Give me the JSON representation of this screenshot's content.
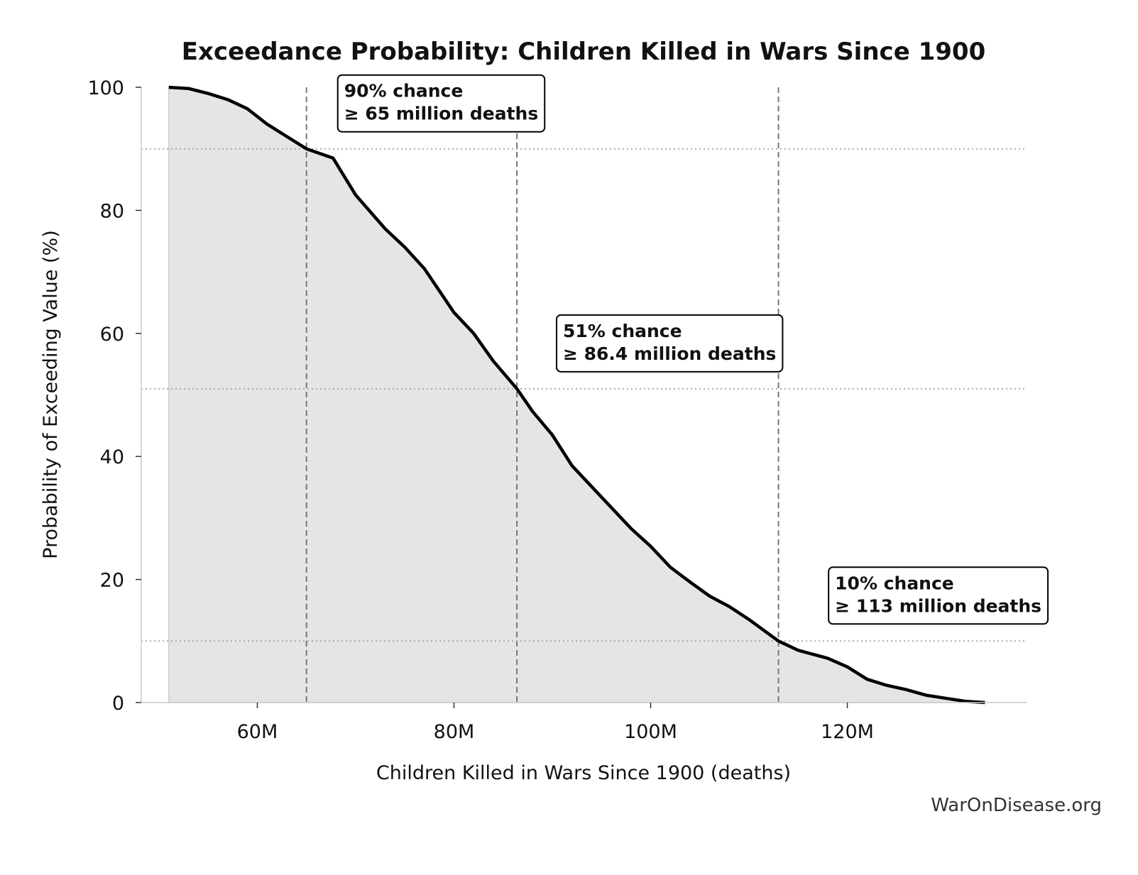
{
  "chart_data": {
    "type": "line",
    "fill": true,
    "title": "Exceedance Probability: Children Killed in Wars Since 1900",
    "xlabel": "Children Killed in Wars Since 1900 (deaths)",
    "ylabel": "Probability of Exceeding Value (%)",
    "source": "WarOnDisease.org",
    "color": "#000000",
    "fill_color": "#e5e5e5",
    "x": [
      51000000,
      53000000,
      55000000,
      57000000,
      59000000,
      61000000,
      63000000,
      65000000,
      67700000,
      70000000,
      73000000,
      75000000,
      77000000,
      80000000,
      82000000,
      84000000,
      86400000,
      88000000,
      90000000,
      92000000,
      95000000,
      98000000,
      100000000,
      102000000,
      104000000,
      106000000,
      108000000,
      110000000,
      113000000,
      115000000,
      118000000,
      120000000,
      122000000,
      124000000,
      126000000,
      128000000,
      130000000,
      132000000,
      134000000
    ],
    "values": [
      100,
      99.8,
      99,
      98,
      96.5,
      94,
      92,
      90,
      88.5,
      82.5,
      77,
      74,
      70.5,
      63.4,
      60,
      55.5,
      51,
      47.3,
      43.5,
      38.5,
      33.4,
      28.3,
      25.4,
      22,
      19.6,
      17.3,
      15.6,
      13.5,
      10,
      8.5,
      7.2,
      5.8,
      3.8,
      2.8,
      2.1,
      1.2,
      0.7,
      0.2,
      0
    ],
    "xlim": [
      48200000,
      138300000
    ],
    "ylim": [
      0,
      100
    ],
    "xticks": [
      {
        "value": 60000000,
        "label": "60M"
      },
      {
        "value": 80000000,
        "label": "80M"
      },
      {
        "value": 100000000,
        "label": "100M"
      },
      {
        "value": 120000000,
        "label": "120M"
      }
    ],
    "yticks": [
      0,
      20,
      40,
      60,
      80,
      100
    ],
    "annotations": [
      {
        "probability": 90,
        "value": 65000000,
        "text": [
          "90% chance",
          "≥ 65 million deaths"
        ]
      },
      {
        "probability": 51,
        "value": 86400000,
        "text": [
          "51% chance",
          "≥ 86.4 million deaths"
        ]
      },
      {
        "probability": 10,
        "value": 113000000,
        "text": [
          "10% chance",
          "≥ 113 million deaths"
        ]
      }
    ]
  }
}
